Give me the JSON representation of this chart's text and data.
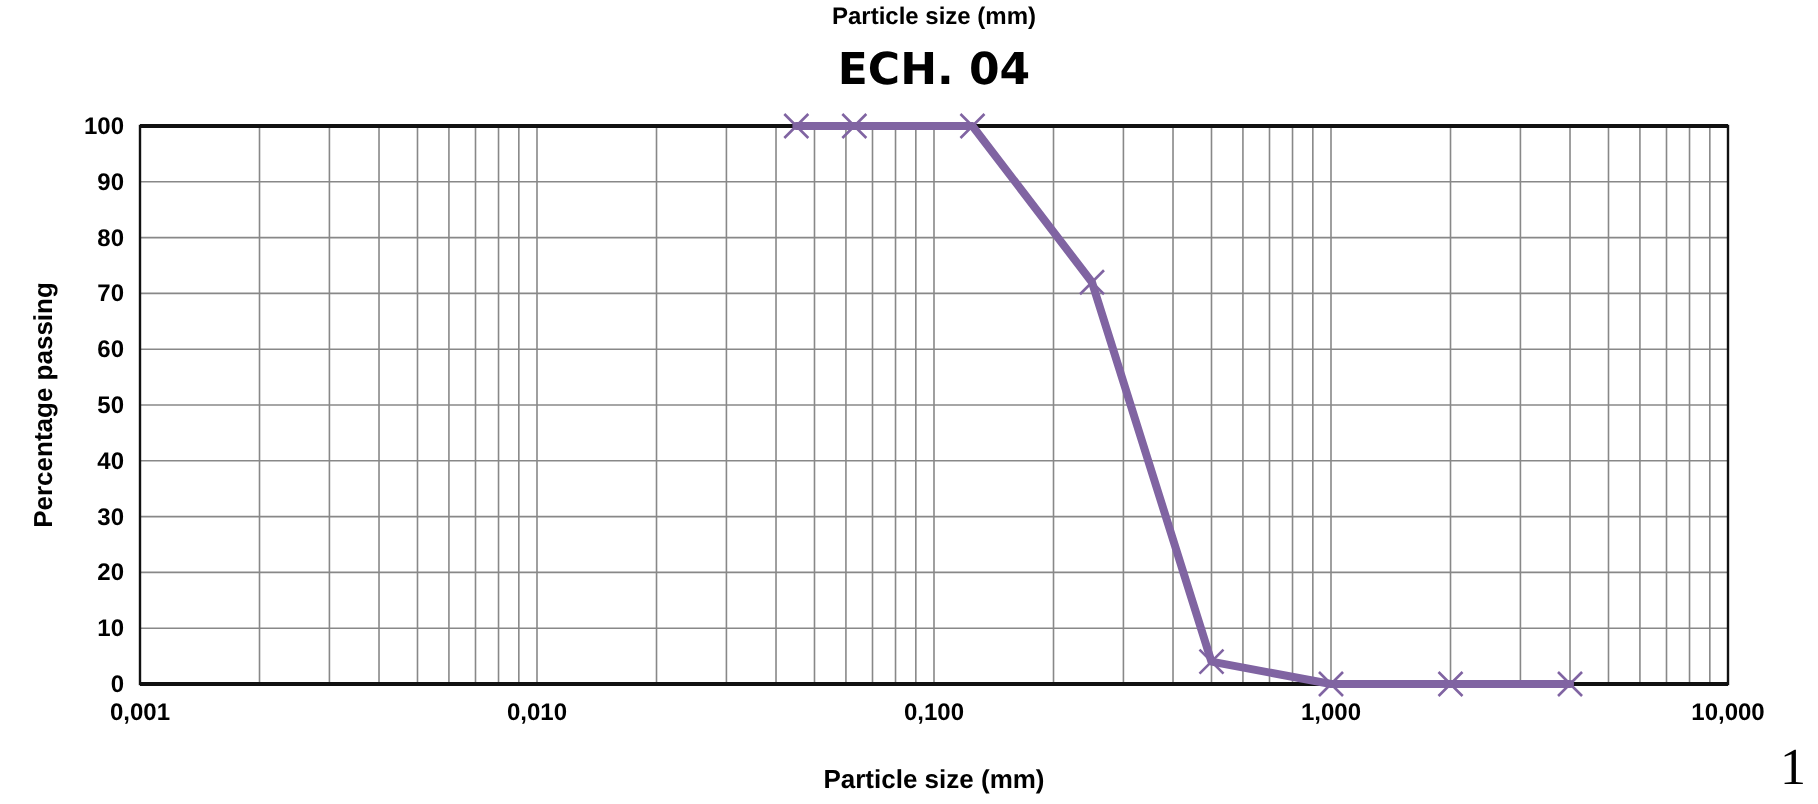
{
  "chart_data": {
    "type": "line",
    "title": "ECH. 04",
    "xlabel": "Particle size (mm)",
    "ylabel": "Percentage passing",
    "annotations": [
      "Particle size (mm)",
      "1"
    ],
    "x": [
      0.045,
      0.063,
      0.125,
      0.25,
      0.5,
      1,
      2,
      4
    ],
    "series": [
      {
        "color": "#8064a2",
        "values": [
          100,
          100,
          100,
          72,
          4,
          0,
          0,
          0
        ]
      }
    ],
    "log": "x",
    "grid": true,
    "marker": "cross",
    "line_style": "solid",
    "xlim": [
      0.001,
      10
    ],
    "xticks": [
      {
        "value": 0.001,
        "label": "0,001"
      },
      {
        "value": 0.002,
        "label": null
      },
      {
        "value": 0.003,
        "label": null
      },
      {
        "value": 0.004,
        "label": null
      },
      {
        "value": 0.005,
        "label": null
      },
      {
        "value": 0.006,
        "label": null
      },
      {
        "value": 0.007,
        "label": null
      },
      {
        "value": 0.008,
        "label": null
      },
      {
        "value": 0.009,
        "label": null
      },
      {
        "value": 0.01,
        "label": "0,010"
      },
      {
        "value": 0.02,
        "label": null
      },
      {
        "value": 0.03,
        "label": null
      },
      {
        "value": 0.04,
        "label": null
      },
      {
        "value": 0.05,
        "label": null
      },
      {
        "value": 0.06,
        "label": null
      },
      {
        "value": 0.07,
        "label": null
      },
      {
        "value": 0.08,
        "label": null
      },
      {
        "value": 0.09,
        "label": null
      },
      {
        "value": 0.1,
        "label": "0,100"
      },
      {
        "value": 0.2,
        "label": null
      },
      {
        "value": 0.3,
        "label": null
      },
      {
        "value": 0.4,
        "label": null
      },
      {
        "value": 0.5,
        "label": null
      },
      {
        "value": 0.6,
        "label": null
      },
      {
        "value": 0.7,
        "label": null
      },
      {
        "value": 0.8,
        "label": null
      },
      {
        "value": 0.9,
        "label": null
      },
      {
        "value": 1,
        "label": "1,000"
      },
      {
        "value": 2,
        "label": null
      },
      {
        "value": 3,
        "label": null
      },
      {
        "value": 4,
        "label": null
      },
      {
        "value": 5,
        "label": null
      },
      {
        "value": 6,
        "label": null
      },
      {
        "value": 7,
        "label": null
      },
      {
        "value": 8,
        "label": null
      },
      {
        "value": 9,
        "label": null
      },
      {
        "value": 10,
        "label": "10,000"
      }
    ],
    "ylim": [
      0,
      100
    ],
    "yticks": [
      0,
      10,
      20,
      30,
      40,
      50,
      60,
      70,
      80,
      90,
      100
    ]
  }
}
